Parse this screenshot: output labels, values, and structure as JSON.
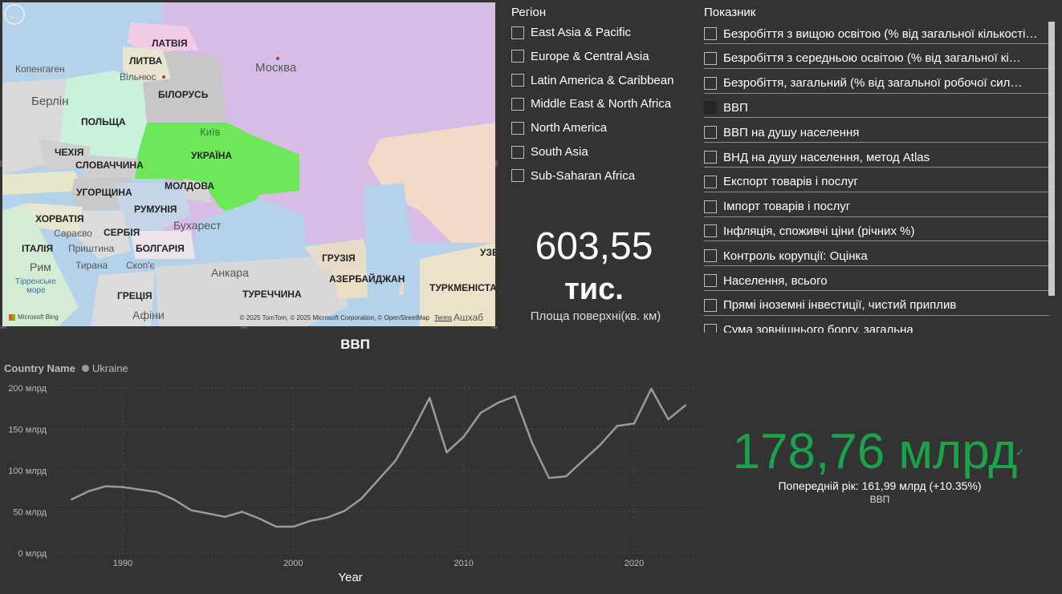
{
  "map": {
    "countries": [
      "ЛАТВІЯ",
      "ЛИТВА",
      "БІЛОРУСЬ",
      "ПОЛЬЩА",
      "УКРАЇНА",
      "ЧЕХІЯ",
      "СЛОВАЧЧИНА",
      "УГОРЩИНА",
      "МОЛДОВА",
      "РУМУНІЯ",
      "ХОРВАТІЯ",
      "СЕРБІЯ",
      "ІТАЛІЯ",
      "БОЛГАРІЯ",
      "ГРЕЦІЯ",
      "ГРУЗІЯ",
      "АЗЕРБАЙДЖАН",
      "ТУРЕЧЧИНА",
      "ТУРКМЕНІСТА",
      "УЗБ"
    ],
    "cities": [
      "Копенгаген",
      "Вільнюс",
      "Москва",
      "Берлін",
      "Київ",
      "Бухарест",
      "Сараєво",
      "Приштина",
      "Тирана",
      "Скоп'є",
      "Рим",
      "Анкара",
      "Афіни",
      "Тірренське",
      "море",
      "Ашхаб"
    ],
    "credit": "© 2025 TomTom, © 2025 Microsoft Corporation, © OpenStreetMap",
    "terms": "Terms",
    "bing": "Microsoft Bing",
    "highlight_color": "#6ee85a"
  },
  "region_slicer": {
    "title": "Регіон",
    "items": [
      "East Asia & Pacific",
      "Europe & Central Asia",
      "Latin America & Caribbean",
      "Middle East & North Africa",
      "North America",
      "South Asia",
      "Sub-Saharan Africa"
    ]
  },
  "indicator_slicer": {
    "title": "Показник",
    "items": [
      {
        "label": "Безробіття з вищою освітою (% від загальної кількості…",
        "checked": false
      },
      {
        "label": "Безробіття з середньою освітою (% від загальної кі…",
        "checked": false
      },
      {
        "label": "Безробіття, загальний (% від загальної робочої сил…",
        "checked": false
      },
      {
        "label": "ВВП",
        "checked": true
      },
      {
        "label": "ВВП на душу населення",
        "checked": false
      },
      {
        "label": "ВНД на душу населення, метод Atlas",
        "checked": false
      },
      {
        "label": "Експорт товарів і послуг",
        "checked": false
      },
      {
        "label": "Імпорт товарів і послуг",
        "checked": false
      },
      {
        "label": "Інфляція, споживчі ціни (річних %)",
        "checked": false
      },
      {
        "label": "Контроль корупції: Оцінка",
        "checked": false
      },
      {
        "label": "Населення, всього",
        "checked": false
      },
      {
        "label": "Прямі іноземні інвестиції, чистий приплив",
        "checked": false
      },
      {
        "label": "Сума зовнішнього боргу, загальна",
        "checked": false
      }
    ]
  },
  "area_card": {
    "value": "603,55",
    "unit": "тис.",
    "label": "Площа поверхні(кв. км)"
  },
  "chart_title": "ВВП",
  "legend": {
    "title": "Country Name",
    "series": "Ukraine"
  },
  "chart_data": {
    "type": "line",
    "title": "ВВП",
    "xlabel": "Year",
    "ylabel": "",
    "ylim": [
      0,
      200
    ],
    "xlim": [
      1986,
      2024
    ],
    "x_ticks": [
      1990,
      2000,
      2010,
      2020
    ],
    "y_ticks": [
      0,
      50,
      100,
      150,
      200
    ],
    "y_tick_labels": [
      "0 млрд",
      "50 млрд",
      "100 млрд",
      "150 млрд",
      "200 млрд"
    ],
    "grid": true,
    "series": [
      {
        "name": "Ukraine",
        "color": "#9a9a9a",
        "x": [
          1987,
          1988,
          1989,
          1990,
          1991,
          1992,
          1993,
          1994,
          1995,
          1996,
          1997,
          1998,
          1999,
          2000,
          2001,
          2002,
          2003,
          2004,
          2005,
          2006,
          2007,
          2008,
          2009,
          2010,
          2011,
          2012,
          2013,
          2014,
          2015,
          2016,
          2017,
          2018,
          2019,
          2020,
          2021,
          2022,
          2023
        ],
        "values": [
          65,
          75,
          81,
          80,
          77,
          74,
          65,
          52,
          48,
          44,
          50,
          42,
          32,
          32,
          39,
          43,
          51,
          66,
          89,
          112,
          148,
          188,
          122,
          141,
          170,
          182,
          190,
          134,
          91,
          93,
          112,
          131,
          154,
          157,
          199,
          162,
          179
        ]
      }
    ]
  },
  "gdp_card": {
    "value": "178,76 млрд",
    "previous": "Попередній рік: 161,99 млрд (+10.35%)",
    "label": "ВВП",
    "color": "#1aa34a"
  }
}
